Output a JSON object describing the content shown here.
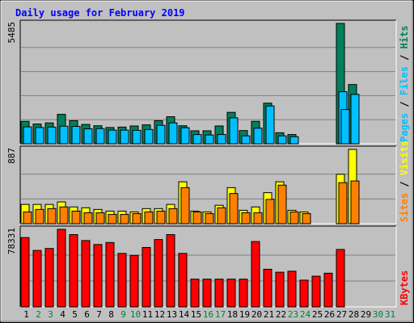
{
  "chart_data": {
    "type": "bar",
    "title": "Daily usage for February 2019",
    "colors": {
      "background": "#c0c0c0",
      "plot_bg": "#c0c0c0",
      "title": "#0000ff",
      "hits": "#00805c",
      "files": "#00c0ff",
      "pages": "#00c0ff",
      "visits": "#ffff00",
      "sites": "#ff8000",
      "kbytes": "#ff0000",
      "weekday": "#000000",
      "weekend": "#008040",
      "grid": "#808080"
    },
    "days": [
      "1",
      "2",
      "3",
      "4",
      "5",
      "6",
      "7",
      "8",
      "9",
      "10",
      "11",
      "12",
      "13",
      "14",
      "15",
      "16",
      "17",
      "18",
      "19",
      "20",
      "21",
      "22",
      "23",
      "24",
      "25",
      "26",
      "27",
      "28",
      "29",
      "30",
      "31"
    ],
    "weekend_days": [
      2,
      3,
      9,
      10,
      16,
      17,
      23,
      24,
      30,
      31
    ],
    "panels": [
      {
        "id": "hits_files",
        "ymax_label": "5485",
        "ymax": 5485,
        "legend": [
          "Pages",
          "Files",
          "Hits"
        ],
        "series": [
          {
            "name": "Hits",
            "values": [
              1020,
              900,
              950,
              1340,
              1050,
              880,
              820,
              740,
              760,
              810,
              860,
              1050,
              1230,
              820,
              590,
              590,
              810,
              1430,
              600,
              1020,
              1850,
              500,
              420,
              0,
              0,
              0,
              5485,
              2700,
              0,
              0,
              0
            ]
          },
          {
            "name": "Files",
            "values": [
              770,
              740,
              760,
              800,
              790,
              680,
              690,
              620,
              620,
              610,
              650,
              840,
              950,
              730,
              420,
              400,
              420,
              1180,
              360,
              710,
              1720,
              360,
              320,
              0,
              0,
              0,
              2370,
              2250,
              0,
              0,
              0
            ]
          },
          {
            "name": "Pages",
            "values": [
              0,
              0,
              0,
              0,
              0,
              0,
              0,
              0,
              0,
              0,
              0,
              0,
              0,
              0,
              0,
              0,
              0,
              0,
              0,
              0,
              0,
              0,
              0,
              0,
              0,
              0,
              1560,
              0,
              0,
              0,
              0
            ]
          }
        ]
      },
      {
        "id": "visits_sites",
        "ymax_label": "887",
        "ymax": 887,
        "legend": [
          "Sites",
          "Visits"
        ],
        "series": [
          {
            "name": "Visits",
            "values": [
              230,
              230,
              230,
              260,
              200,
              190,
              170,
              150,
              150,
              140,
              180,
              180,
              230,
              500,
              150,
              140,
              220,
              430,
              160,
              200,
              370,
              500,
              160,
              140,
              0,
              0,
              590,
              887,
              0,
              0,
              0
            ]
          },
          {
            "name": "Sites",
            "values": [
              140,
              170,
              180,
              200,
              150,
              130,
              130,
              110,
              110,
              120,
              140,
              150,
              180,
              430,
              140,
              120,
              190,
              360,
              130,
              130,
              290,
              460,
              140,
              120,
              0,
              0,
              490,
              510,
              0,
              0,
              0
            ]
          }
        ]
      },
      {
        "id": "kbytes",
        "ymax_label": "78331",
        "ymax": 78331,
        "legend": [
          "KBytes"
        ],
        "series": [
          {
            "name": "KBytes",
            "values": [
              70000,
              57000,
              59000,
              78331,
              73000,
              67000,
              63000,
              65000,
              54000,
              52000,
              60000,
              68000,
              73000,
              54000,
              28000,
              28000,
              28000,
              28000,
              28000,
              66000,
              38000,
              35000,
              36000,
              27000,
              31000,
              34000,
              58000,
              0,
              0,
              0,
              0
            ]
          }
        ]
      }
    ]
  }
}
